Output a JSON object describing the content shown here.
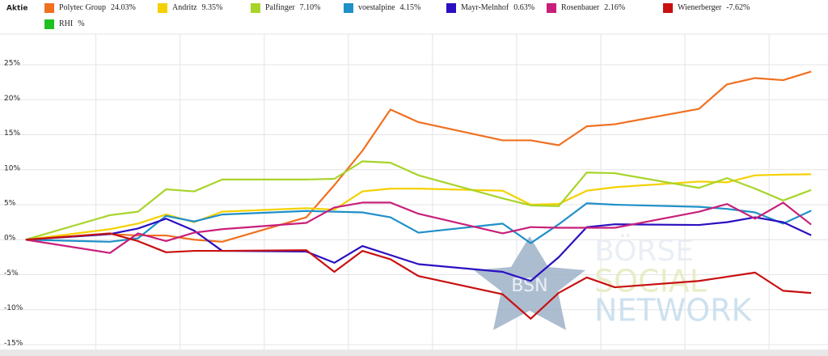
{
  "chart_data": {
    "type": "line",
    "legend_title": "Aktie",
    "watermark": {
      "logo": "BSN",
      "lines": [
        "BÖRSE",
        "SOCIAL",
        "NETWORK"
      ]
    },
    "x": [
      0,
      3,
      4,
      5,
      6,
      7,
      10,
      11,
      12,
      13,
      14,
      17,
      18,
      19,
      20,
      21,
      24,
      25,
      26,
      27,
      28
    ],
    "xlim": [
      -0.92,
      28.6
    ],
    "xticks": [
      2.5,
      5.5,
      8.5,
      11.5,
      14.5,
      17.5,
      20.5,
      23.5,
      26.5
    ],
    "ylim": [
      -15.7,
      29.4
    ],
    "yticks": [
      {
        "value": -15,
        "label": "-15%"
      },
      {
        "value": -10,
        "label": "-10%"
      },
      {
        "value": -5,
        "label": "-5%"
      },
      {
        "value": 0,
        "label": "0%"
      },
      {
        "value": 5,
        "label": "5%"
      },
      {
        "value": 10,
        "label": "10%"
      },
      {
        "value": 15,
        "label": "15%"
      },
      {
        "value": 20,
        "label": "20%"
      },
      {
        "value": 25,
        "label": "25%"
      }
    ],
    "grid": true,
    "series": [
      {
        "name": "Polytec Group",
        "change_label": "24.03%",
        "color": "#f07020",
        "values": [
          0,
          0.8,
          0.6,
          0.6,
          0,
          -0.3,
          3.2,
          7.8,
          12.7,
          18.6,
          16.8,
          14.2,
          14.2,
          13.5,
          16.2,
          16.5,
          18.7,
          22.2,
          23.1,
          22.8,
          24.03
        ]
      },
      {
        "name": "Andritz",
        "change_label": "9.35%",
        "color": "#f5d000",
        "values": [
          0,
          1.5,
          2.3,
          3.6,
          2.5,
          4.0,
          4.5,
          4.3,
          6.9,
          7.3,
          7.3,
          7.0,
          5.0,
          5.1,
          7.0,
          7.5,
          8.3,
          8.2,
          9.2,
          9.3,
          9.35
        ]
      },
      {
        "name": "Palfinger",
        "change_label": "7.10%",
        "color": "#a8d42a",
        "values": [
          0,
          3.5,
          4.0,
          7.2,
          6.9,
          8.6,
          8.6,
          8.7,
          11.2,
          11.0,
          9.2,
          5.9,
          4.9,
          4.8,
          9.6,
          9.5,
          7.4,
          8.8,
          7.3,
          5.6,
          7.1
        ]
      },
      {
        "name": "voestalpine",
        "change_label": "4.15%",
        "color": "#2090c8",
        "values": [
          0,
          -0.3,
          0.2,
          3.4,
          2.6,
          3.6,
          4.1,
          4.0,
          3.9,
          3.2,
          1.0,
          2.3,
          -0.5,
          2.2,
          5.2,
          5.0,
          4.7,
          4.4,
          3.9,
          2.3,
          4.15
        ]
      },
      {
        "name": "Mayr-Melnhof",
        "change_label": "0.63%",
        "color": "#2a10c0",
        "values": [
          0,
          0.8,
          1.6,
          3.0,
          1.3,
          -1.6,
          -1.7,
          -3.3,
          -0.9,
          -2.2,
          -3.5,
          -4.6,
          -5.9,
          -2.5,
          1.8,
          2.2,
          2.1,
          2.5,
          3.2,
          2.5,
          0.63
        ]
      },
      {
        "name": "Rosenbauer",
        "change_label": "2.16%",
        "color": "#c8207a",
        "values": [
          0,
          -1.9,
          0.9,
          -0.2,
          1.0,
          1.5,
          2.4,
          4.6,
          5.3,
          5.3,
          3.7,
          0.9,
          1.8,
          1.7,
          1.7,
          1.7,
          4.0,
          5.1,
          3.0,
          5.3,
          2.16
        ]
      },
      {
        "name": "Wienerberger",
        "change_label": "-7.62%",
        "color": "#c81010",
        "values": [
          0,
          0.9,
          -0.2,
          -1.8,
          -1.6,
          -1.6,
          -1.5,
          -4.6,
          -1.6,
          -2.8,
          -5.2,
          -7.8,
          -11.3,
          -7.6,
          -5.4,
          -6.8,
          -5.9,
          -5.3,
          -4.7,
          -7.3,
          -7.62
        ]
      },
      {
        "name": "RHI",
        "change_label": "%",
        "color": "#20c020",
        "values": [
          null,
          null,
          null,
          null,
          null,
          null,
          null,
          null,
          null,
          null,
          null,
          null,
          null,
          null,
          null,
          null,
          null,
          null,
          null,
          null,
          null
        ]
      }
    ]
  }
}
